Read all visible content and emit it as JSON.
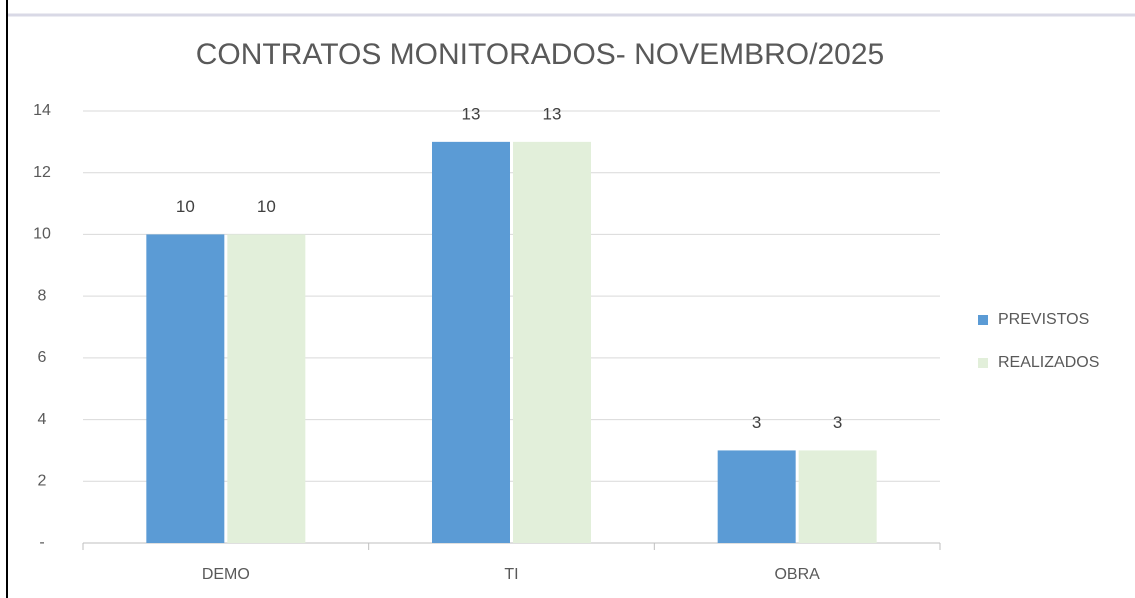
{
  "chart_data": {
    "type": "bar",
    "title": "CONTRATOS MONITORADOS- NOVEMBRO/2025",
    "categories": [
      "DEMO",
      "TI",
      "OBRA"
    ],
    "series": [
      {
        "name": "PREVISTOS",
        "color": "#5b9bd5",
        "values": [
          10,
          13,
          3
        ]
      },
      {
        "name": "REALIZADOS",
        "color": "#e2efda",
        "values": [
          10,
          13,
          3
        ]
      }
    ],
    "ylim": [
      0,
      14
    ],
    "yticks": [
      {
        "value": 0,
        "label": "-"
      },
      2,
      4,
      6,
      8,
      10,
      12,
      14
    ],
    "grid": true,
    "legend": "right"
  }
}
